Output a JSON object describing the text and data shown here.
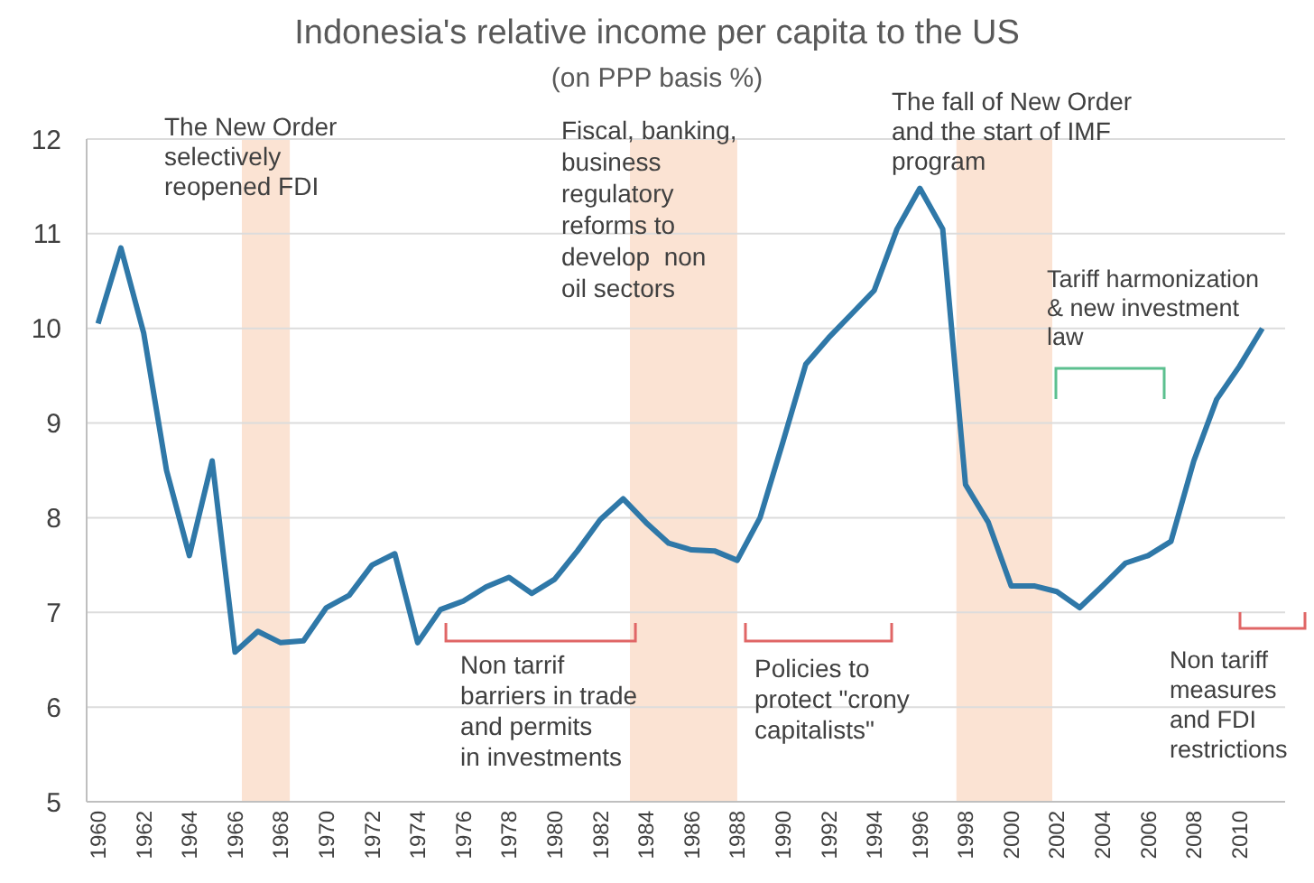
{
  "chart_data": {
    "type": "line",
    "title": "Indonesia's relative income per capita to the US",
    "subtitle": "(on PPP basis %)",
    "x": [
      1960,
      1961,
      1962,
      1963,
      1964,
      1965,
      1966,
      1967,
      1968,
      1969,
      1970,
      1971,
      1972,
      1973,
      1974,
      1975,
      1976,
      1977,
      1978,
      1979,
      1980,
      1981,
      1982,
      1983,
      1984,
      1985,
      1986,
      1987,
      1988,
      1989,
      1990,
      1991,
      1992,
      1993,
      1994,
      1995,
      1996,
      1997,
      1998,
      1999,
      2000,
      2001,
      2002,
      2003,
      2004,
      2005,
      2006,
      2007,
      2008,
      2009,
      2010,
      2011
    ],
    "series": [
      {
        "color": "#2f78a8",
        "values": [
          10.05,
          10.85,
          9.95,
          8.5,
          7.6,
          8.6,
          6.58,
          6.8,
          6.68,
          6.7,
          7.05,
          7.18,
          7.5,
          7.62,
          6.68,
          7.03,
          7.12,
          7.27,
          7.37,
          7.2,
          7.35,
          7.65,
          7.98,
          8.2,
          7.95,
          7.73,
          7.66,
          7.65,
          7.55,
          8.0,
          8.8,
          9.62,
          9.9,
          10.15,
          10.4,
          11.05,
          11.48,
          11.05,
          8.35,
          7.95,
          7.28,
          7.28,
          7.22,
          7.05,
          7.28,
          7.52,
          7.6,
          7.75,
          8.6,
          9.25,
          9.6,
          10.0
        ]
      }
    ],
    "xlim": [
      1959.5,
      2012
    ],
    "xticks": [
      1960,
      1962,
      1964,
      1966,
      1968,
      1970,
      1972,
      1974,
      1976,
      1978,
      1980,
      1982,
      1984,
      1986,
      1988,
      1990,
      1992,
      1994,
      1996,
      1998,
      2000,
      2002,
      2004,
      2006,
      2008,
      2010
    ],
    "ylim": [
      5,
      12
    ],
    "yticks": [
      5,
      6,
      7,
      8,
      9,
      10,
      11,
      12
    ],
    "grid": "y",
    "marker": "none",
    "line_style": "solid",
    "bands": [
      {
        "axis": "x",
        "from": 1966.3,
        "to": 1968.4,
        "color": "#fbe3d3"
      },
      {
        "axis": "x",
        "from": 1983.3,
        "to": 1988.0,
        "color": "#fbe3d3"
      },
      {
        "axis": "x",
        "from": 1997.6,
        "to": 2001.8,
        "color": "#fbe3d3"
      }
    ],
    "annotations": [
      "The New Order\nselectively\nreopened FDI",
      "Fiscal, banking,\nbusiness\nregulatory\nreforms to\ndevelop  non\noil sectors",
      "The fall of New Order\nand the start of IMF\nprogram",
      "Tariff harmonization\n& new investment\nlaw",
      {
        "text": "Non tarrif\nbarriers in trade\nand permits\nin investments",
        "x": 1975,
        "y": 7.03
      },
      "Policies to\nprotect \"crony\ncapitalists\"",
      "Non tariff\nmeasures\nand FDI\nrestrictions"
    ]
  }
}
